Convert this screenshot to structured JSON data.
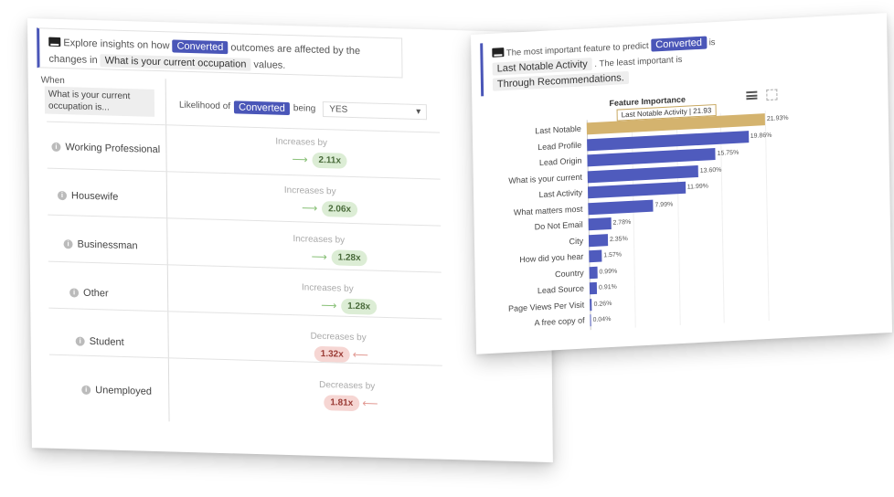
{
  "insights": {
    "intro_pre": "Explore insights on how",
    "target_tag": "Converted",
    "intro_mid": "outcomes are affected by the changes in",
    "feature_tag": "What is your current occupation",
    "intro_post": "values.",
    "when_label": "When",
    "occupation_label": "What is your current occupation is...",
    "likelihood_pre": "Likelihood of",
    "likelihood_tag": "Converted",
    "likelihood_post": "being",
    "select_value": "YES",
    "rows": [
      {
        "label": "Working Professional",
        "effect": "Increases by",
        "value": "2.11x",
        "direction": "inc"
      },
      {
        "label": "Housewife",
        "effect": "Increases by",
        "value": "2.06x",
        "direction": "inc"
      },
      {
        "label": "Businessman",
        "effect": "Increases by",
        "value": "1.28x",
        "direction": "inc"
      },
      {
        "label": "Other",
        "effect": "Increases by",
        "value": "1.28x",
        "direction": "inc"
      },
      {
        "label": "Student",
        "effect": "Decreases by",
        "value": "1.32x",
        "direction": "dec"
      },
      {
        "label": "Unemployed",
        "effect": "Decreases by",
        "value": "1.81x",
        "direction": "dec"
      }
    ]
  },
  "feature_importance": {
    "intro_pre": "The most important feature to predict",
    "target_tag": "Converted",
    "intro_is": "is",
    "top_tag": "Last Notable Activity",
    "intro_mid": ". The least important is",
    "least_tag": "Through Recommendations.",
    "tooltip": "Last Notable Activity | 21.93",
    "colors": {
      "highlight": "#d4b36e",
      "bar": "#4f5bbd"
    }
  },
  "chart_data": {
    "type": "bar",
    "orientation": "horizontal",
    "title": "Feature Importance",
    "categories": [
      "Last Notable",
      "Lead Profile",
      "Lead Origin",
      "What is your current",
      "Last Activity",
      "What matters most",
      "Do Not Email",
      "City",
      "How did you hear",
      "Country",
      "Lead Source",
      "Page Views Per Visit",
      "A free copy of"
    ],
    "values": [
      21.93,
      19.86,
      15.75,
      13.6,
      11.99,
      7.99,
      2.78,
      2.35,
      1.57,
      0.99,
      0.91,
      0.26,
      0.04
    ],
    "value_labels": [
      "21.93%",
      "19.86%",
      "15.75%",
      "13.60%",
      "11.99%",
      "7.99%",
      "2.78%",
      "2.35%",
      "1.57%",
      "0.99%",
      "0.91%",
      "0.26%",
      "0.04%"
    ],
    "highlighted_index": 0
  }
}
